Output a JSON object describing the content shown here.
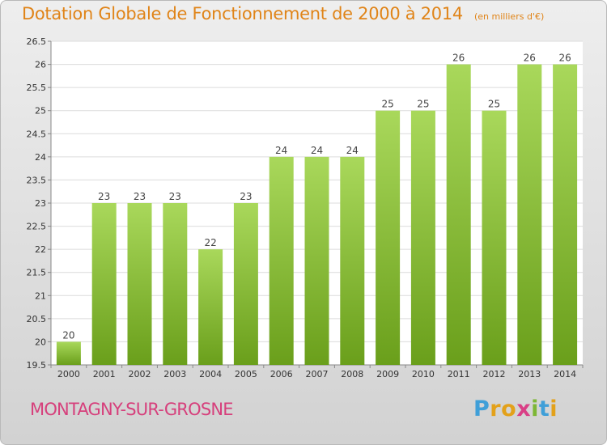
{
  "header": {
    "title": "Dotation Globale de Fonctionnement de 2000 à 2014",
    "unit": "(en milliers d'€)"
  },
  "footer": {
    "commune": "MONTAGNY-SUR-GROSNE",
    "logo_letters": [
      "P",
      "r",
      "o",
      "x",
      "i",
      "t",
      "i"
    ],
    "logo_colors": [
      "#3f9fd8",
      "#e3a11a",
      "#e3a11a",
      "#d93f86",
      "#7db735",
      "#3f9fd8",
      "#e3a11a"
    ]
  },
  "colors": {
    "title": "#e08418",
    "commune": "#d6407c",
    "bar_light": "#a9d85b",
    "bar_dark": "#6a9f1b"
  },
  "chart_data": {
    "type": "bar",
    "title": "Dotation Globale de Fonctionnement de 2000 à 2014",
    "xlabel": "",
    "ylabel": "",
    "categories": [
      "2000",
      "2001",
      "2002",
      "2003",
      "2004",
      "2005",
      "2006",
      "2007",
      "2008",
      "2009",
      "2010",
      "2011",
      "2012",
      "2013",
      "2014"
    ],
    "values": [
      20,
      23,
      23,
      23,
      22,
      23,
      24,
      24,
      24,
      25,
      25,
      26,
      25,
      26,
      26
    ],
    "value_labels": [
      "20",
      "23",
      "23",
      "23",
      "22",
      "23",
      "24",
      "24",
      "24",
      "25",
      "25",
      "26",
      "25",
      "26",
      "26"
    ],
    "ylim": [
      19.5,
      26.5
    ],
    "yticks": [
      19.5,
      20,
      20.5,
      21,
      21.5,
      22,
      22.5,
      23,
      23.5,
      24,
      24.5,
      25,
      25.5,
      26,
      26.5
    ],
    "ytick_labels": [
      "19.5",
      "20",
      "20.5",
      "21",
      "21.5",
      "22",
      "22.5",
      "23",
      "23.5",
      "24",
      "24.5",
      "25",
      "25.5",
      "26",
      "26.5"
    ],
    "grid": true,
    "legend": "none"
  }
}
